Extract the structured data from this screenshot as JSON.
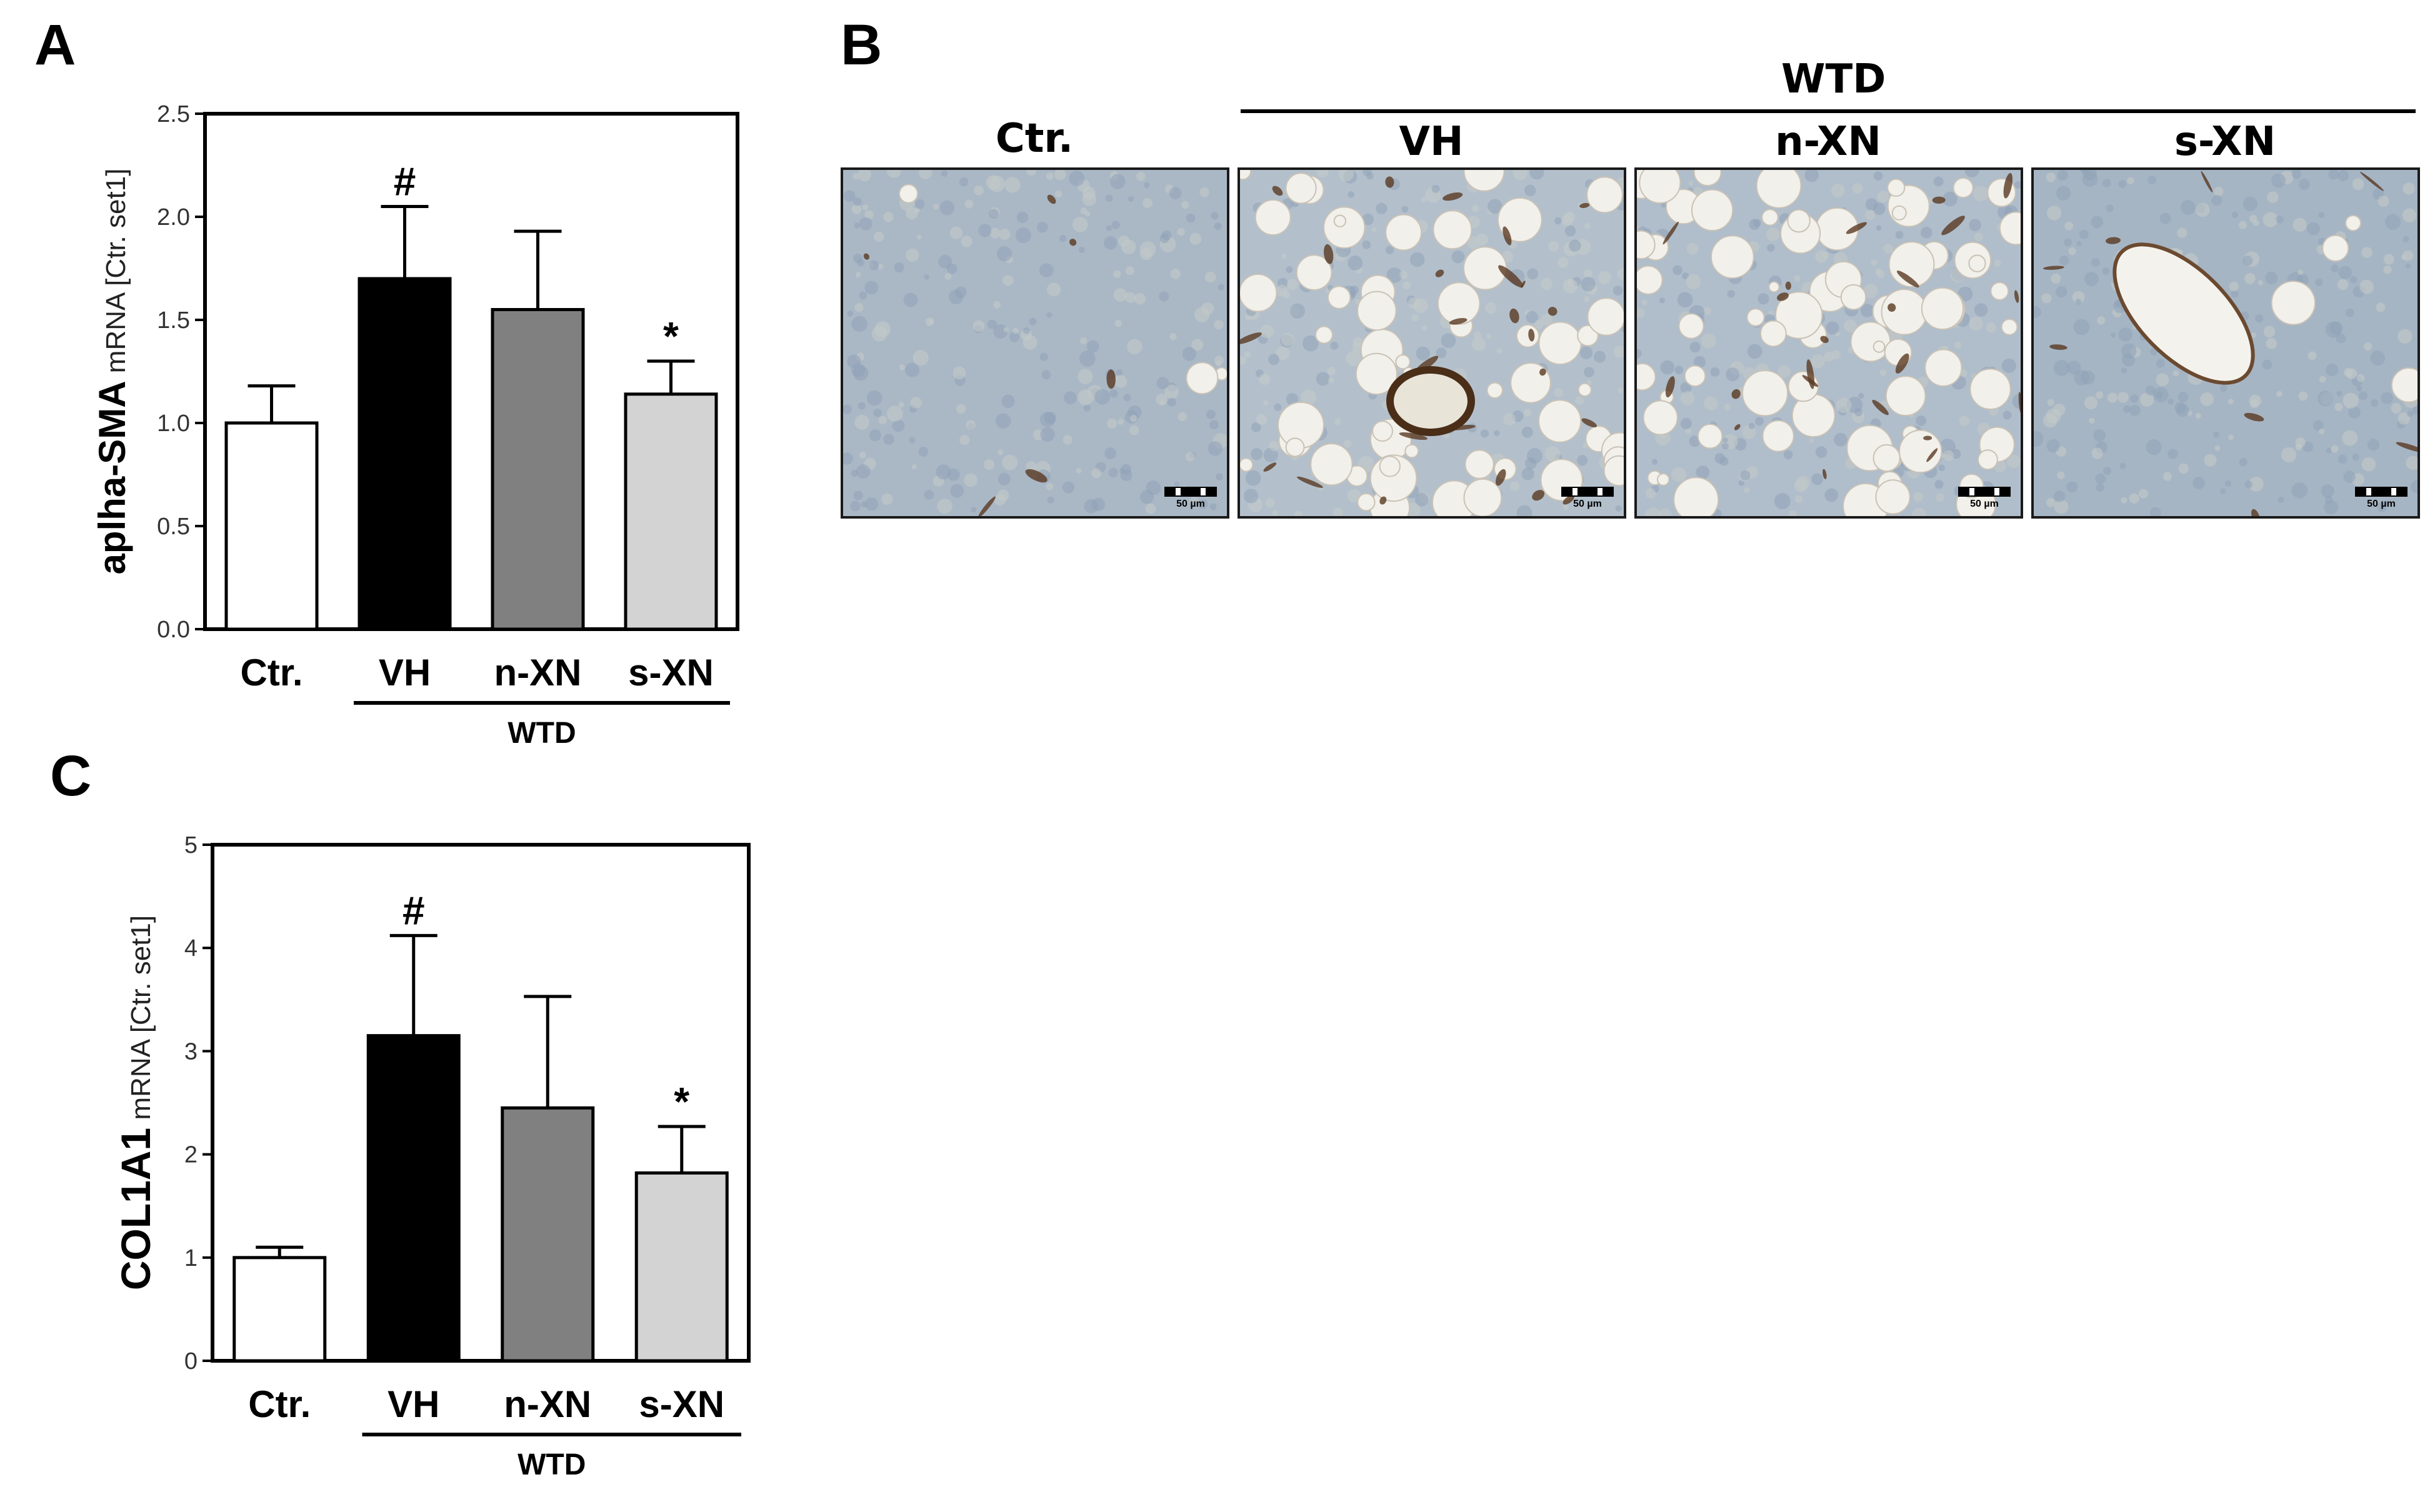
{
  "panels": {
    "a": {
      "letter": "A"
    },
    "b": {
      "letter": "B",
      "group_label": "WTD"
    },
    "c": {
      "letter": "C"
    }
  },
  "micrographs": [
    {
      "label": "Ctr.",
      "scale_text": "50 µm",
      "tint": "#aab8c6"
    },
    {
      "label": "VH",
      "scale_text": "50 µm",
      "tint": "#b3c0cc"
    },
    {
      "label": "n-XN",
      "scale_text": "50 µm",
      "tint": "#b0bdca"
    },
    {
      "label": "s-XN",
      "scale_text": "50 µm",
      "tint": "#a6b5c4"
    }
  ],
  "chart_data": [
    {
      "type": "bar",
      "categories": [
        "Ctr.",
        "VH",
        "n-XN",
        "s-XN"
      ],
      "values": [
        1.0,
        1.7,
        1.55,
        1.14
      ],
      "errors": [
        0.18,
        0.35,
        0.38,
        0.16
      ],
      "colors": [
        "#ffffff",
        "#000000",
        "#808080",
        "#d3d3d3"
      ],
      "annotations": [
        "",
        "#",
        "",
        "*"
      ],
      "ylabel_bold": "aplha-SMA",
      "ylabel_normal": "mRNA [Ctr. set1]",
      "group_label": "WTD",
      "ylim": [
        0,
        2.5
      ],
      "yticks": [
        0.0,
        0.5,
        1.0,
        1.5,
        2.0,
        2.5
      ],
      "ytick_labels": [
        "0.0",
        "0.5",
        "1.0",
        "1.5",
        "2.0",
        "2.5"
      ]
    },
    {
      "type": "bar",
      "categories": [
        "Ctr.",
        "VH",
        "n-XN",
        "s-XN"
      ],
      "values": [
        1.0,
        3.15,
        2.45,
        1.82
      ],
      "errors": [
        0.1,
        0.97,
        1.08,
        0.45
      ],
      "colors": [
        "#ffffff",
        "#000000",
        "#808080",
        "#d3d3d3"
      ],
      "annotations": [
        "",
        "#",
        "",
        "*"
      ],
      "ylabel_bold": "COL1A1",
      "ylabel_normal": "mRNA [Ctr. set1]",
      "group_label": "WTD",
      "ylim": [
        0,
        5
      ],
      "yticks": [
        0,
        1,
        2,
        3,
        4,
        5
      ],
      "ytick_labels": [
        "0",
        "1",
        "2",
        "3",
        "4",
        "5"
      ]
    }
  ]
}
